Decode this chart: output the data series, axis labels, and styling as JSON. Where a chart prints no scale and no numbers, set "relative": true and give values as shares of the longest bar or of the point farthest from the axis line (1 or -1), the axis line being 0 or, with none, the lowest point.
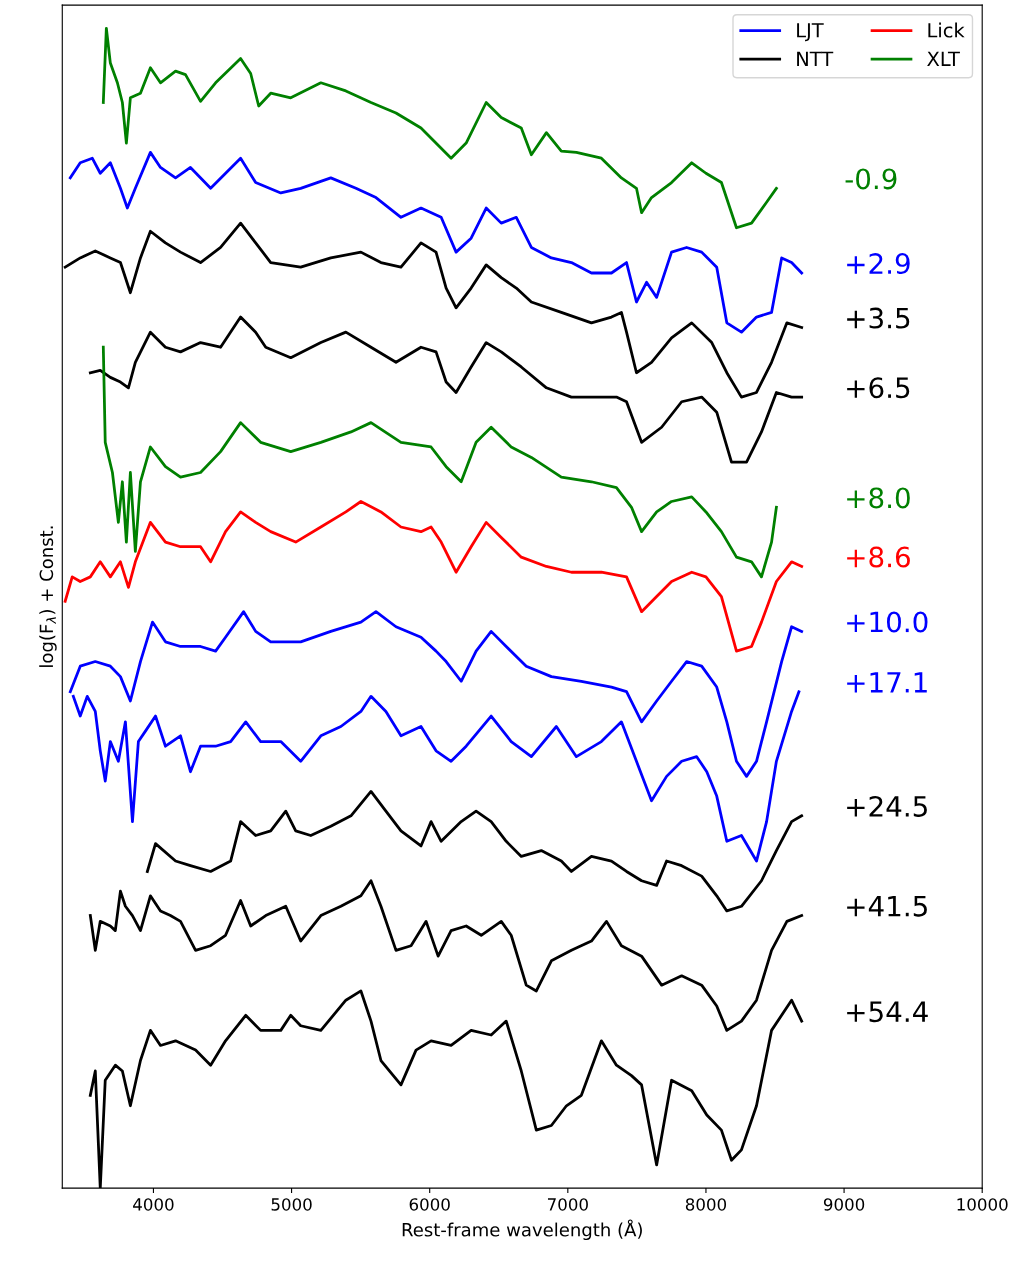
{
  "chart_data": {
    "type": "line",
    "relative": true,
    "xlabel": "Rest-frame wavelength (Å)",
    "ylabel": "log(F$_{λ}$) + Const.",
    "xlim": [
      3340,
      10000
    ],
    "xticks": [
      4000,
      5000,
      6000,
      7000,
      8000,
      9000,
      10000
    ],
    "legend": "top right",
    "grid": false,
    "series": [
      {
        "name": "LJT",
        "color": "#0000ff",
        "x": [
          3398,
          3470,
          3557,
          3615,
          3688,
          3761,
          3811,
          3869,
          3978,
          4051,
          4160,
          4268,
          4414,
          4631,
          4740,
          4922,
          5066,
          5284,
          5466,
          5611,
          5792,
          5937,
          6083,
          6191,
          6300,
          6409,
          6518,
          6627,
          6736,
          6881,
          7026,
          7171,
          7316,
          7425,
          7497,
          7570,
          7643,
          7751,
          7860,
          7969,
          8078,
          8151,
          8257,
          8366,
          8475,
          8548,
          8620,
          8693,
          null,
          3398,
          3470,
          3579,
          3688,
          3761,
          3833,
          3906,
          3993,
          4087,
          4196,
          4341,
          4450,
          4522,
          4653,
          4740,
          4849,
          5066,
          5284,
          5502,
          5611,
          5756,
          5937,
          6046,
          6119,
          6228,
          6336,
          6445,
          6554,
          6699,
          6881,
          7098,
          7316,
          7425,
          7534,
          7643,
          7751,
          7860,
          7969,
          8078,
          8151,
          8221,
          8294,
          8366,
          8439,
          8548,
          8620,
          8693,
          null,
          3420,
          3470,
          3521,
          3579,
          3615,
          3651,
          3688,
          3746,
          3797,
          3848,
          3891,
          3942,
          4015,
          4087,
          4196,
          4268,
          4341,
          4450,
          4559,
          4668,
          4776,
          4922,
          5066,
          5212,
          5357,
          5502,
          5575,
          5683,
          5792,
          5937,
          6046,
          6155,
          6264,
          6445,
          6590,
          6736,
          6917,
          7062,
          7243,
          7388,
          7497,
          7606,
          7715,
          7824,
          7933,
          8006,
          8078,
          8151,
          8257,
          8366,
          8439,
          8510,
          8620,
          8673
        ],
        "values": [
          0.871,
          0.884,
          0.888,
          0.875,
          0.884,
          0.862,
          0.845,
          0.862,
          0.893,
          0.88,
          0.871,
          0.88,
          0.862,
          0.888,
          0.867,
          0.858,
          0.862,
          0.871,
          0.862,
          0.854,
          0.837,
          0.845,
          0.837,
          0.807,
          0.819,
          0.845,
          0.832,
          0.837,
          0.811,
          0.802,
          0.798,
          0.789,
          0.789,
          0.798,
          0.764,
          0.781,
          0.768,
          0.807,
          0.811,
          0.807,
          0.794,
          0.746,
          0.738,
          0.751,
          0.755,
          0.802,
          0.798,
          0.789,
          null,
          0.428,
          0.45,
          0.454,
          0.45,
          0.441,
          0.42,
          0.454,
          0.488,
          0.471,
          0.467,
          0.467,
          0.463,
          0.475,
          0.497,
          0.48,
          0.471,
          0.471,
          0.48,
          0.488,
          0.497,
          0.484,
          0.475,
          0.463,
          0.454,
          0.437,
          0.463,
          0.48,
          0.467,
          0.45,
          0.441,
          0.437,
          0.432,
          0.428,
          0.402,
          0.42,
          0.437,
          0.454,
          0.45,
          0.432,
          0.402,
          0.368,
          0.355,
          0.368,
          0.402,
          0.454,
          0.484,
          0.48,
          null,
          0.424,
          0.407,
          0.424,
          0.411,
          0.377,
          0.351,
          0.385,
          0.368,
          0.402,
          0.316,
          0.385,
          0.394,
          0.407,
          0.381,
          0.39,
          0.359,
          0.381,
          0.381,
          0.385,
          0.402,
          0.385,
          0.385,
          0.368,
          0.39,
          0.398,
          0.411,
          0.424,
          0.411,
          0.39,
          0.398,
          0.377,
          0.368,
          0.381,
          0.407,
          0.385,
          0.372,
          0.398,
          0.372,
          0.385,
          0.402,
          0.368,
          0.334,
          0.355,
          0.368,
          0.372,
          0.359,
          0.338,
          0.299,
          0.304,
          0.282,
          0.316,
          0.368,
          0.411,
          0.428
        ]
      },
      {
        "name": "NTT",
        "color": "#000000",
        "x": [
          3361,
          3470,
          3579,
          3688,
          3761,
          3833,
          3906,
          3978,
          4087,
          4196,
          4341,
          4486,
          4631,
          4740,
          4849,
          5066,
          5284,
          5502,
          5647,
          5792,
          5937,
          6046,
          6119,
          6191,
          6300,
          6409,
          6518,
          6627,
          6736,
          6953,
          7171,
          7316,
          7388,
          7425,
          7497,
          7606,
          7751,
          7897,
          8042,
          8151,
          8257,
          8366,
          8475,
          8586,
          8693,
          null,
          3543,
          3615,
          3688,
          3761,
          3819,
          3869,
          3978,
          4087,
          4196,
          4341,
          4486,
          4631,
          4740,
          4813,
          4994,
          5212,
          5393,
          5575,
          5756,
          5937,
          6046,
          6119,
          6191,
          6300,
          6409,
          6518,
          6663,
          6845,
          7026,
          7243,
          7352,
          7425,
          7534,
          7679,
          7824,
          7969,
          8078,
          8185,
          8294,
          8402,
          8510,
          8620,
          8693,
          null,
          3956,
          4015,
          4160,
          4268,
          4414,
          4559,
          4631,
          4740,
          4849,
          4958,
          5030,
          5139,
          5284,
          5430,
          5575,
          5683,
          5792,
          5937,
          6010,
          6083,
          6228,
          6336,
          6445,
          6554,
          6663,
          6808,
          6953,
          7026,
          7171,
          7316,
          7425,
          7534,
          7643,
          7715,
          7824,
          7969,
          8078,
          8151,
          8257,
          8402,
          8510,
          8620,
          8693,
          null,
          3543,
          3579,
          3615,
          3688,
          3724,
          3761,
          3797,
          3848,
          3906,
          3978,
          4051,
          4123,
          4196,
          4305,
          4414,
          4522,
          4631,
          4704,
          4813,
          4958,
          5066,
          5212,
          5357,
          5502,
          5575,
          5647,
          5756,
          5865,
          5974,
          6061,
          6155,
          6264,
          6373,
          6518,
          6590,
          6699,
          6772,
          6881,
          7026,
          7171,
          7280,
          7388,
          7534,
          7679,
          7824,
          7969,
          8078,
          8151,
          8257,
          8366,
          8475,
          8586,
          8693,
          null,
          3543,
          3579,
          3615,
          3651,
          3724,
          3775,
          3833,
          3906,
          3978,
          4051,
          4160,
          4305,
          4414,
          4522,
          4668,
          4776,
          4922,
          4994,
          5066,
          5212,
          5393,
          5502,
          5575,
          5647,
          5792,
          5901,
          6010,
          6155,
          6300,
          6445,
          6554,
          6663,
          6772,
          6881,
          6990,
          7098,
          7243,
          7352,
          7461,
          7534,
          7643,
          7751,
          7897,
          8006,
          8112,
          8185,
          8257,
          8366,
          8475,
          8620,
          8693
        ],
        "values": [
          0.794,
          0.802,
          0.808,
          0.802,
          0.798,
          0.772,
          0.802,
          0.825,
          0.815,
          0.807,
          0.798,
          0.811,
          0.832,
          0.815,
          0.798,
          0.794,
          0.802,
          0.807,
          0.798,
          0.794,
          0.815,
          0.807,
          0.776,
          0.759,
          0.776,
          0.796,
          0.785,
          0.776,
          0.764,
          0.755,
          0.746,
          0.751,
          0.755,
          0.738,
          0.703,
          0.712,
          0.733,
          0.746,
          0.729,
          0.703,
          0.682,
          0.686,
          0.712,
          0.746,
          0.742,
          null,
          0.703,
          0.705,
          0.699,
          0.695,
          0.69,
          0.712,
          0.738,
          0.725,
          0.721,
          0.729,
          0.725,
          0.751,
          0.738,
          0.725,
          0.716,
          0.729,
          0.738,
          0.725,
          0.712,
          0.725,
          0.721,
          0.695,
          0.686,
          0.708,
          0.729,
          0.721,
          0.708,
          0.69,
          0.682,
          0.682,
          0.682,
          0.678,
          0.643,
          0.656,
          0.678,
          0.682,
          0.669,
          0.626,
          0.626,
          0.652,
          0.686,
          0.682,
          0.682,
          null,
          0.273,
          0.297,
          0.282,
          0.278,
          0.273,
          0.282,
          0.316,
          0.304,
          0.308,
          0.325,
          0.308,
          0.304,
          0.312,
          0.321,
          0.342,
          0.325,
          0.308,
          0.295,
          0.316,
          0.299,
          0.316,
          0.325,
          0.316,
          0.299,
          0.286,
          0.291,
          0.282,
          0.273,
          0.286,
          0.282,
          0.273,
          0.265,
          0.261,
          0.282,
          0.278,
          0.269,
          0.252,
          0.239,
          0.243,
          0.265,
          0.291,
          0.316,
          0.321,
          null,
          0.235,
          0.205,
          0.23,
          0.226,
          0.222,
          0.256,
          0.243,
          0.235,
          0.222,
          0.252,
          0.239,
          0.235,
          0.23,
          0.205,
          0.209,
          0.218,
          0.248,
          0.226,
          0.235,
          0.243,
          0.213,
          0.235,
          0.243,
          0.252,
          0.265,
          0.243,
          0.205,
          0.209,
          0.23,
          0.2,
          0.222,
          0.226,
          0.218,
          0.23,
          0.218,
          0.175,
          0.17,
          0.196,
          0.205,
          0.213,
          0.23,
          0.209,
          0.2,
          0.175,
          0.183,
          0.175,
          0.157,
          0.136,
          0.144,
          0.162,
          0.205,
          0.23,
          0.235,
          null,
          0.08,
          0.101,
          0.0,
          0.093,
          0.106,
          0.101,
          0.071,
          0.11,
          0.136,
          0.123,
          0.127,
          0.119,
          0.106,
          0.127,
          0.149,
          0.136,
          0.136,
          0.149,
          0.14,
          0.136,
          0.162,
          0.17,
          0.144,
          0.11,
          0.089,
          0.119,
          0.127,
          0.123,
          0.136,
          0.132,
          0.144,
          0.101,
          0.05,
          0.054,
          0.071,
          0.08,
          0.127,
          0.106,
          0.097,
          0.089,
          0.02,
          0.093,
          0.084,
          0.063,
          0.05,
          0.024,
          0.033,
          0.071,
          0.136,
          0.162,
          0.144
        ]
      },
      {
        "name": "Lick",
        "color": "#ff0000",
        "x": [
          3361,
          3412,
          3470,
          3543,
          3615,
          3688,
          3761,
          3819,
          3869,
          3978,
          4087,
          4196,
          4341,
          4414,
          4522,
          4631,
          4740,
          4849,
          5030,
          5212,
          5393,
          5502,
          5647,
          5792,
          5937,
          6010,
          6083,
          6191,
          6300,
          6409,
          6518,
          6663,
          6845,
          7026,
          7243,
          7425,
          7534,
          7643,
          7751,
          7897,
          8000,
          8112,
          8221,
          8330,
          8402,
          8510,
          8620,
          8693
        ],
        "values": [
          0.506,
          0.527,
          0.523,
          0.527,
          0.54,
          0.527,
          0.54,
          0.518,
          0.54,
          0.574,
          0.557,
          0.553,
          0.553,
          0.54,
          0.566,
          0.583,
          0.574,
          0.566,
          0.557,
          0.57,
          0.583,
          0.592,
          0.583,
          0.57,
          0.566,
          0.57,
          0.557,
          0.531,
          0.553,
          0.574,
          0.561,
          0.544,
          0.536,
          0.531,
          0.531,
          0.527,
          0.497,
          0.51,
          0.523,
          0.531,
          0.527,
          0.51,
          0.463,
          0.467,
          0.488,
          0.523,
          0.54,
          0.536
        ]
      },
      {
        "name": "XLT",
        "color": "#008000",
        "x": [
          3637,
          3659,
          3688,
          3739,
          3775,
          3804,
          3833,
          3906,
          3978,
          4051,
          4160,
          4232,
          4341,
          4450,
          4631,
          4704,
          4762,
          4849,
          4994,
          5212,
          5393,
          5575,
          5756,
          5937,
          6155,
          6264,
          6409,
          6518,
          6663,
          6736,
          6845,
          6953,
          7062,
          7243,
          7388,
          7497,
          7534,
          7606,
          7751,
          7897,
          8000,
          8112,
          8221,
          8330,
          8439,
          8510,
          null,
          3637,
          3651,
          3703,
          3746,
          3775,
          3804,
          3833,
          3869,
          3906,
          3978,
          4087,
          4196,
          4341,
          4486,
          4631,
          4776,
          4994,
          5212,
          5430,
          5575,
          5792,
          6010,
          6119,
          6228,
          6336,
          6445,
          6590,
          6736,
          6953,
          7171,
          7352,
          7461,
          7534,
          7643,
          7751,
          7897,
          8000,
          8112,
          8221,
          8330,
          8402,
          8475,
          8510
        ],
        "values": [
          0.936,
          1.0,
          0.97,
          0.953,
          0.936,
          0.901,
          0.94,
          0.944,
          0.966,
          0.953,
          0.963,
          0.96,
          0.937,
          0.953,
          0.974,
          0.961,
          0.933,
          0.944,
          0.94,
          0.953,
          0.946,
          0.936,
          0.927,
          0.914,
          0.888,
          0.901,
          0.936,
          0.923,
          0.914,
          0.891,
          0.91,
          0.894,
          0.893,
          0.888,
          0.871,
          0.862,
          0.841,
          0.854,
          0.867,
          0.884,
          0.875,
          0.867,
          0.828,
          0.832,
          0.85,
          0.862,
          null,
          0.725,
          0.643,
          0.617,
          0.574,
          0.609,
          0.557,
          0.617,
          0.549,
          0.609,
          0.639,
          0.622,
          0.613,
          0.617,
          0.635,
          0.66,
          0.643,
          0.635,
          0.643,
          0.652,
          0.66,
          0.643,
          0.639,
          0.622,
          0.609,
          0.643,
          0.656,
          0.639,
          0.63,
          0.613,
          0.609,
          0.604,
          0.587,
          0.566,
          0.583,
          0.592,
          0.596,
          0.583,
          0.566,
          0.544,
          0.54,
          0.527,
          0.557,
          0.587
        ]
      }
    ],
    "annotations": [
      "-0.9",
      "+2.9",
      "+3.5",
      "+6.5",
      "+8.0",
      "+8.6",
      "+10.0",
      "+17.1",
      "+24.5",
      "+41.5",
      "+54.4"
    ]
  }
}
